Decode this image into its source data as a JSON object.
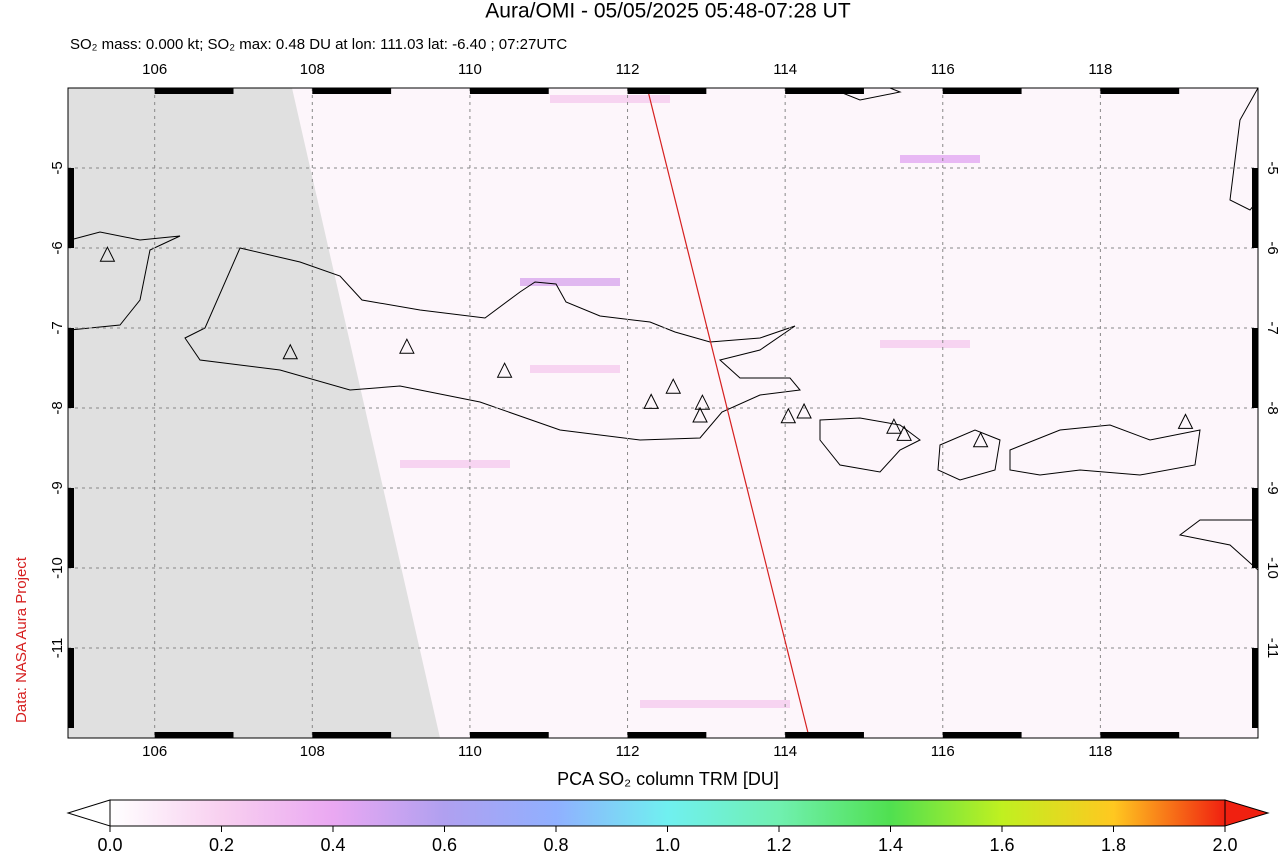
{
  "title": "Aura/OMI - 05/05/2025 05:48-07:28 UT",
  "subtitle": "SO₂ mass: 0.000 kt; SO₂ max: 0.48 DU at lon: 111.03 lat: -6.40 ; 07:27UTC",
  "credit": "Data: NASA Aura Project",
  "map": {
    "xlim": [
      104.9,
      120
    ],
    "ylim": [
      -12.125,
      -4
    ],
    "xticks": [
      106,
      108,
      110,
      112,
      114,
      116,
      118
    ],
    "yticks": [
      -5,
      -6,
      -7,
      -8,
      -9,
      -10,
      -11
    ],
    "grid": true,
    "track": {
      "lon": [
        112.25,
        114.3
      ],
      "lat": [
        -4,
        -12.1
      ],
      "color": "#d62020"
    },
    "volcanoes": {
      "lon": [
        105.4,
        107.72,
        109.2,
        110.44,
        112.3,
        112.58,
        112.95,
        112.92,
        114.04,
        114.24,
        115.38,
        115.51,
        116.48,
        119.08
      ],
      "lat": [
        -6.09,
        -7.31,
        -7.24,
        -7.54,
        -7.93,
        -7.74,
        -7.94,
        -8.1,
        -8.11,
        -8.05,
        -8.24,
        -8.33,
        -8.41,
        -8.18
      ]
    }
  },
  "colorbar": {
    "label": "PCA SO₂ column TRM [DU]",
    "range": [
      0,
      2
    ],
    "ticks": [
      {
        "value": 0,
        "label": "0.0"
      },
      {
        "value": 0.2,
        "label": "0.2"
      },
      {
        "value": 0.4,
        "label": "0.4"
      },
      {
        "value": 0.6,
        "label": "0.6"
      },
      {
        "value": 0.8,
        "label": "0.8"
      },
      {
        "value": 1,
        "label": "1.0"
      },
      {
        "value": 1.2,
        "label": "1.2"
      },
      {
        "value": 1.4,
        "label": "1.4"
      },
      {
        "value": 1.6,
        "label": "1.6"
      },
      {
        "value": 1.8,
        "label": "1.8"
      },
      {
        "value": 2,
        "label": "2.0"
      }
    ]
  }
}
